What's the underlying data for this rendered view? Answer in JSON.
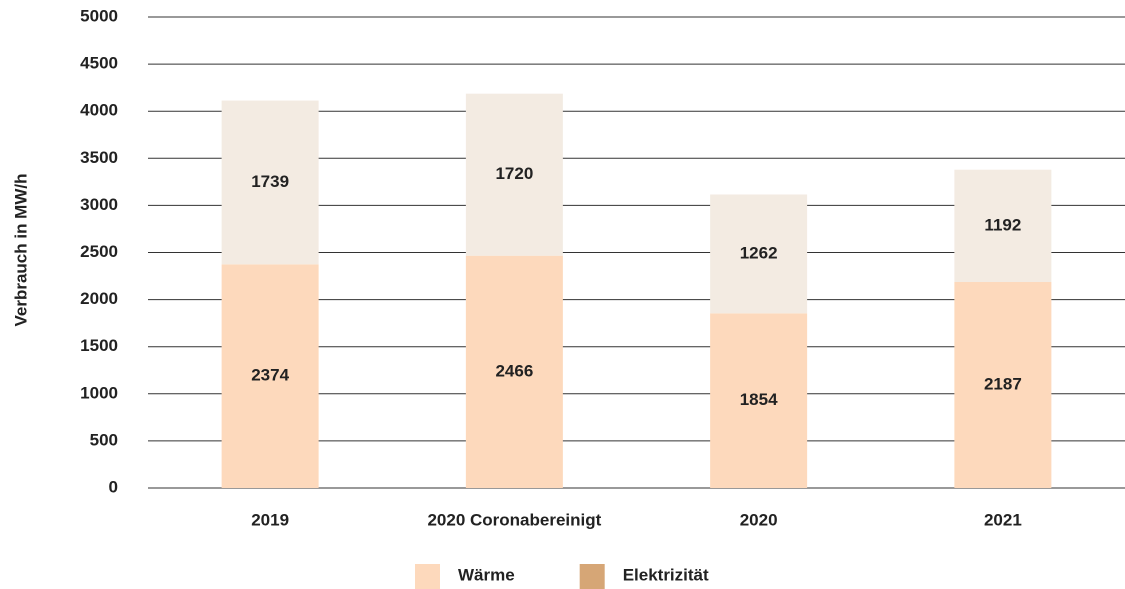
{
  "chart_data": {
    "type": "stacked_bar",
    "y_label": "Verbrauch in MW/h",
    "categories": [
      "2019",
      "2020 Coronabereinigt",
      "2020",
      "2021"
    ],
    "series": [
      {
        "name": "Wärme",
        "color": "#fdd9bc",
        "legend_color": "#fdd9bc",
        "values": [
          2374,
          2466,
          1854,
          2187
        ]
      },
      {
        "name": "Elektrizität",
        "color": "#f3ebe2",
        "legend_color": "#d6a676",
        "values": [
          1739,
          1720,
          1262,
          1192
        ]
      }
    ],
    "ylim": [
      0,
      5000
    ],
    "yticks": [
      0,
      500,
      1000,
      1500,
      2000,
      2500,
      3000,
      3500,
      4000,
      4500,
      5000
    ],
    "grid": true,
    "legend": "bottom"
  }
}
